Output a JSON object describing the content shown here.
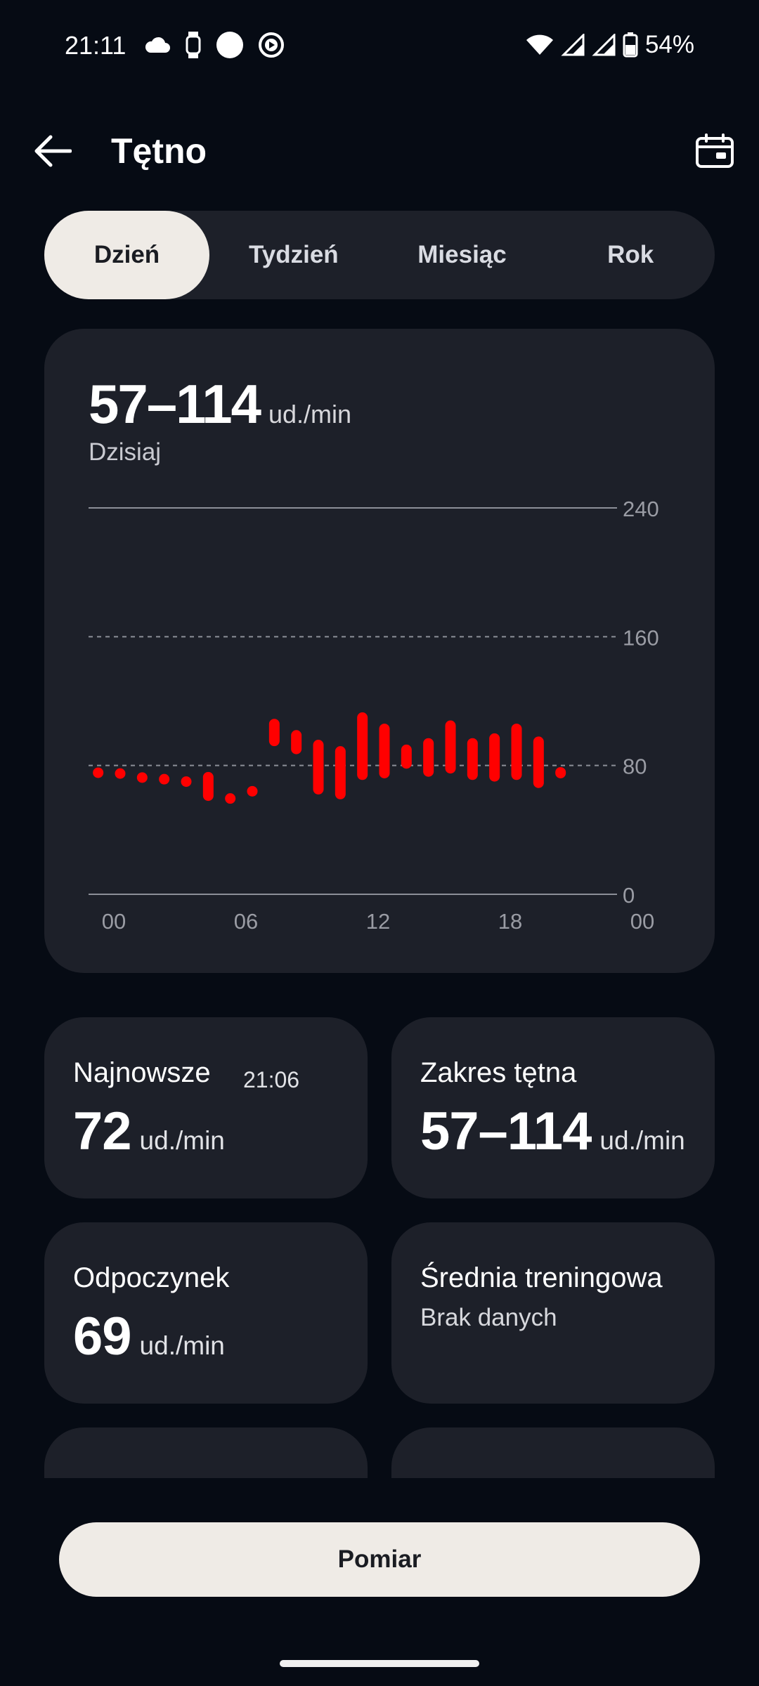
{
  "status_bar": {
    "time": "21:11",
    "battery_percent": "54%",
    "icons_left": [
      "cloud-icon",
      "watch-icon",
      "circle-icon",
      "play-circle-icon"
    ],
    "icons_right": [
      "wifi-icon",
      "signal-icon",
      "signal-icon",
      "battery-icon"
    ]
  },
  "header": {
    "title": "Tętno",
    "back_icon": "arrow-left-icon",
    "calendar_icon": "calendar-icon"
  },
  "tabs": [
    {
      "label": "Dzień",
      "active": true
    },
    {
      "label": "Tydzień",
      "active": false
    },
    {
      "label": "Miesiąc",
      "active": false
    },
    {
      "label": "Rok",
      "active": false
    }
  ],
  "summary": {
    "range": "57–114",
    "unit": "ud./min",
    "period": "Dzisiaj"
  },
  "chart_data": {
    "type": "bar",
    "subtype": "range",
    "color": "#ff0000",
    "x_ticks": [
      "00",
      "06",
      "12",
      "18",
      "00"
    ],
    "y_ticks": [
      "240",
      "160",
      "80",
      "0"
    ],
    "ylim": [
      0,
      240
    ],
    "xlim": [
      0,
      24
    ],
    "grid": {
      "240": "solid",
      "160": "dashed",
      "80": "dashed",
      "0": "solid"
    },
    "series": [
      {
        "values": [
          {
            "x": 0.5,
            "low": 73,
            "high": 78
          },
          {
            "x": 1.5,
            "low": 72,
            "high": 78
          },
          {
            "x": 2.5,
            "low": 71,
            "high": 74
          },
          {
            "x": 3.5,
            "low": 70,
            "high": 73
          },
          {
            "x": 4.5,
            "low": 67,
            "high": 73
          },
          {
            "x": 5.5,
            "low": 58,
            "high": 76
          },
          {
            "x": 6.5,
            "low": 58,
            "high": 61
          },
          {
            "x": 7.5,
            "low": 61,
            "high": 67
          },
          {
            "x": 8.5,
            "low": 92,
            "high": 109
          },
          {
            "x": 9.5,
            "low": 87,
            "high": 102
          },
          {
            "x": 10.5,
            "low": 62,
            "high": 96
          },
          {
            "x": 11.5,
            "low": 59,
            "high": 92
          },
          {
            "x": 12.5,
            "low": 71,
            "high": 113
          },
          {
            "x": 13.5,
            "low": 72,
            "high": 106
          },
          {
            "x": 14.5,
            "low": 78,
            "high": 93
          },
          {
            "x": 15.5,
            "low": 73,
            "high": 97
          },
          {
            "x": 16.5,
            "low": 75,
            "high": 108
          },
          {
            "x": 17.5,
            "low": 71,
            "high": 97
          },
          {
            "x": 18.5,
            "low": 70,
            "high": 100
          },
          {
            "x": 19.5,
            "low": 71,
            "high": 106
          },
          {
            "x": 20.5,
            "low": 66,
            "high": 98
          },
          {
            "x": 21.5,
            "low": 72,
            "high": 79
          }
        ]
      }
    ]
  },
  "cards": {
    "latest": {
      "title": "Najnowsze",
      "time": "21:06",
      "value": "72",
      "unit": "ud./min"
    },
    "range": {
      "title": "Zakres tętna",
      "value": "57–114",
      "unit": "ud./min"
    },
    "rest": {
      "title": "Odpoczynek",
      "value": "69",
      "unit": "ud./min"
    },
    "training_avg": {
      "title": "Średnia treningowa",
      "subtitle": "Brak danych"
    }
  },
  "bottom_button": {
    "label": "Pomiar"
  }
}
